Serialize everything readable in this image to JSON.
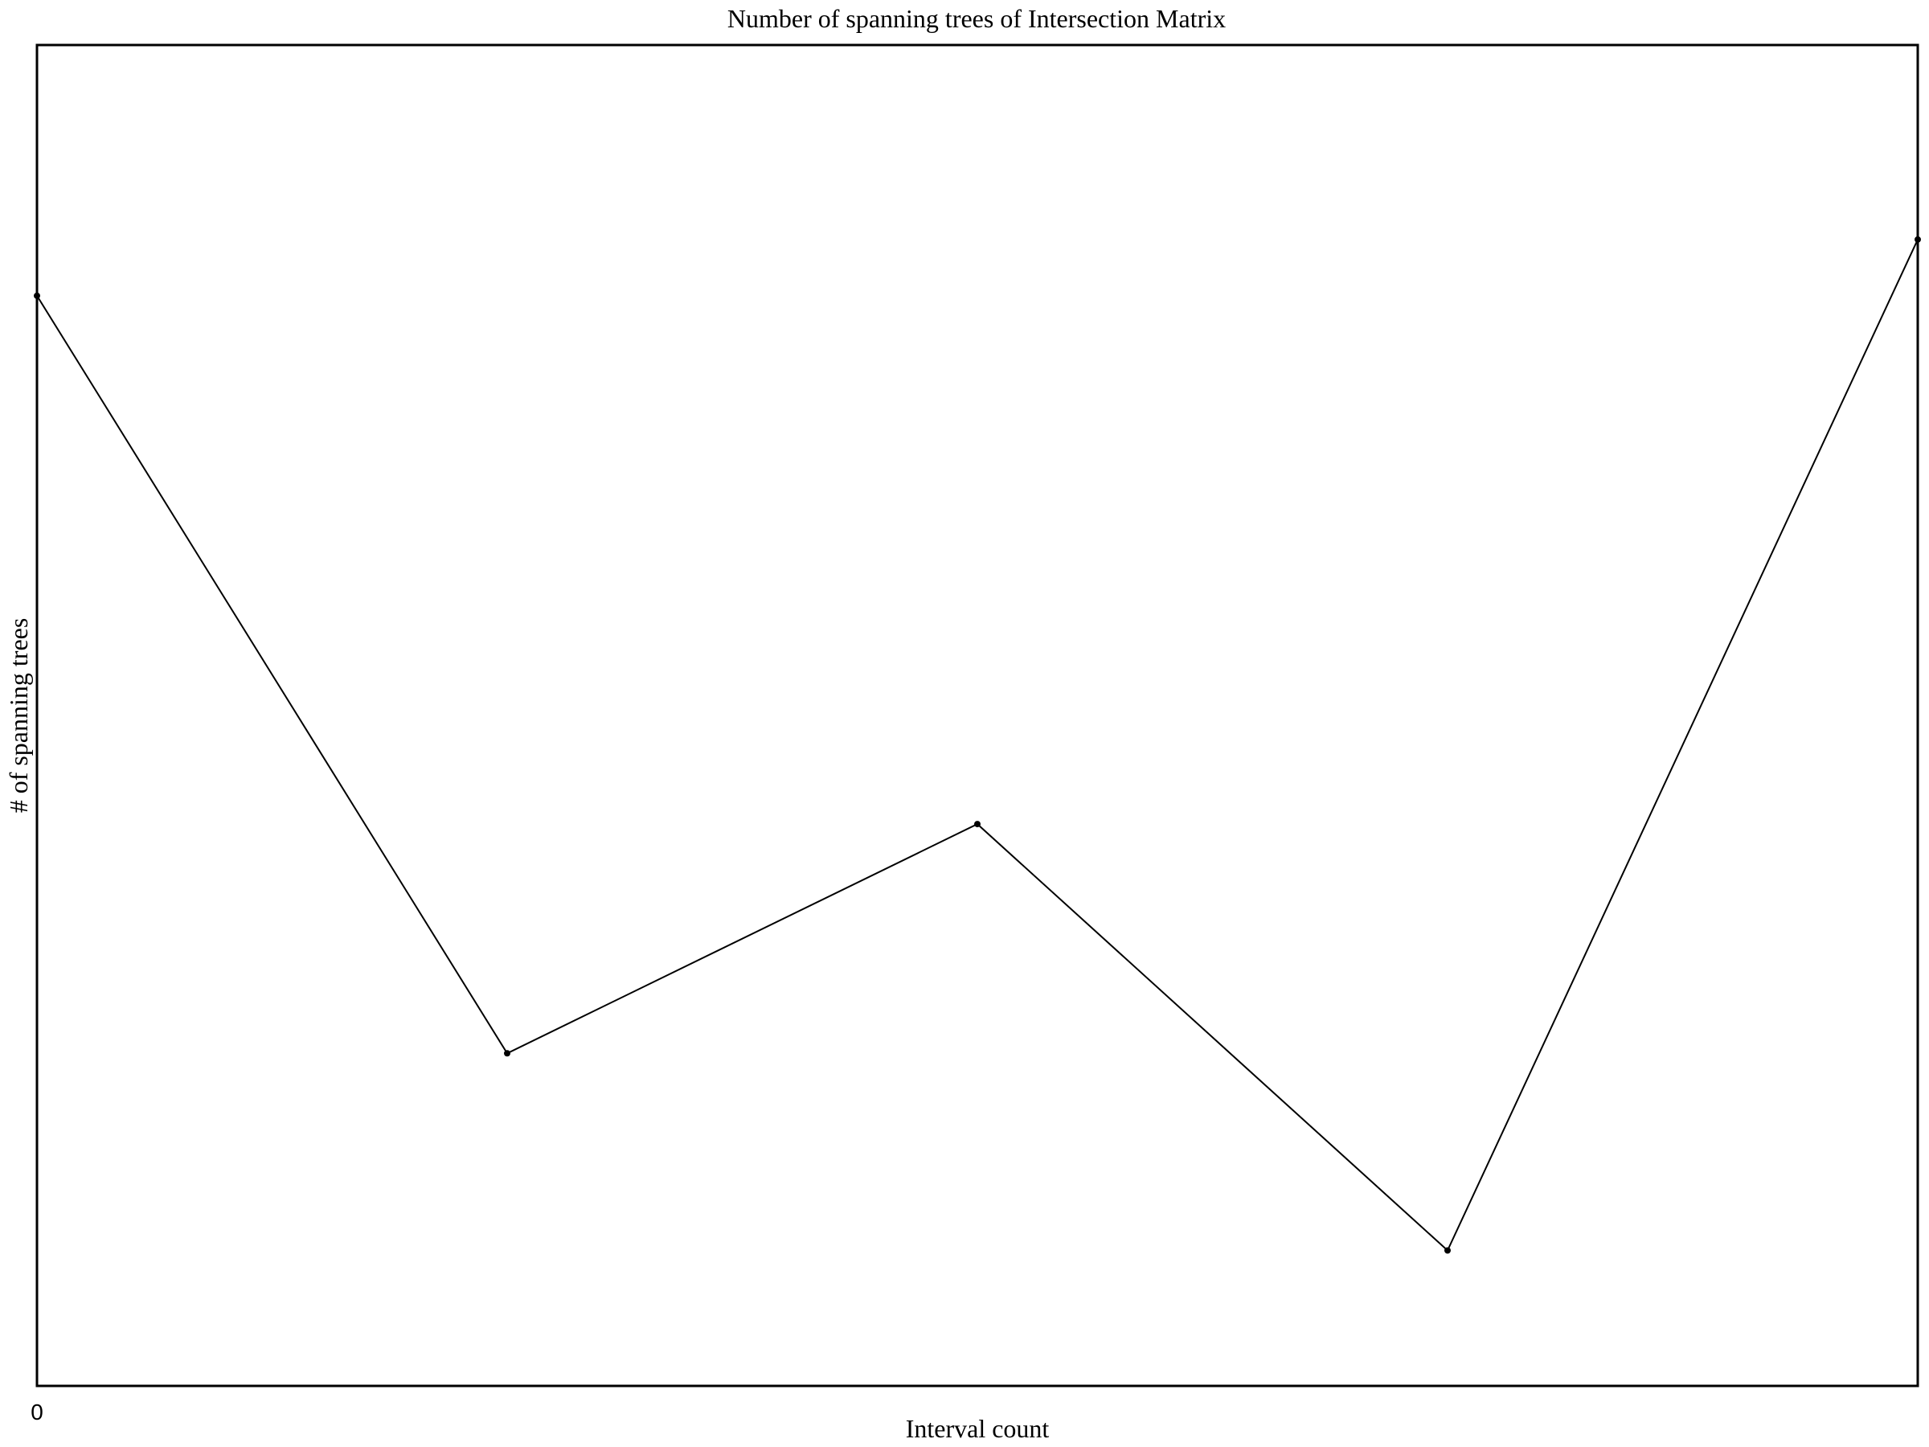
{
  "chart_data": {
    "type": "line",
    "title": "Number of spanning trees of Intersection Matrix",
    "xlabel": "Interval count",
    "ylabel": "# of spanning trees",
    "x_tick_labels": [
      "0"
    ],
    "y_tick_labels": [],
    "xlim": [
      0,
      4
    ],
    "ylim": [
      0,
      100
    ],
    "grid": false,
    "legend": "none",
    "series": [
      {
        "x": [
          0,
          1,
          2,
          3,
          4
        ],
        "y": [
          81.3,
          24.8,
          41.9,
          10.1,
          85.5
        ]
      }
    ],
    "line_color": "#000000",
    "marker_color": "#000000",
    "background_color": "#ffffff"
  }
}
